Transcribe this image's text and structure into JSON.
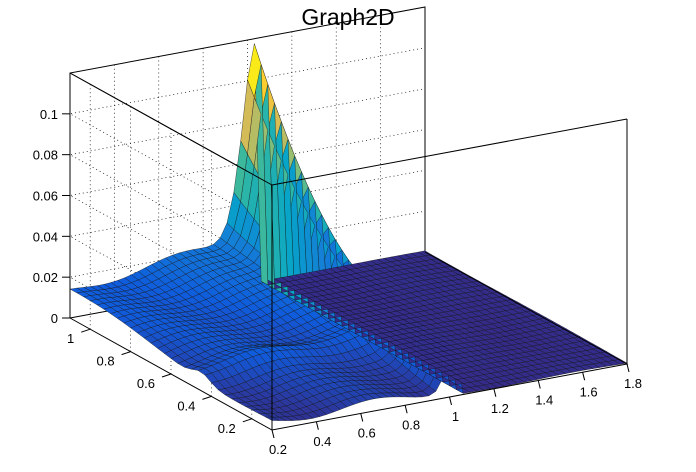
{
  "chart_data": {
    "type": "surface",
    "title": "Graph2D",
    "xlabel": "",
    "ylabel": "",
    "zlabel": "",
    "x_ticks": [
      "0.2",
      "0.4",
      "0.6",
      "0.8",
      "1",
      "1.2",
      "1.4",
      "1.6",
      "1.8"
    ],
    "y_ticks": [
      "0.2",
      "0.4",
      "0.6",
      "0.8",
      "1"
    ],
    "z_ticks": [
      "0",
      "0.02",
      "0.04",
      "0.06",
      "0.08",
      "0.1"
    ],
    "xlim": [
      0.2,
      1.8
    ],
    "ylim": [
      0.1,
      1.1
    ],
    "zlim": [
      0,
      0.12
    ],
    "grid": true,
    "colormap": [
      "#352a87",
      "#0f5cdd",
      "#1481d6",
      "#06a4ca",
      "#2eb7a4",
      "#87bf77",
      "#d1bb59",
      "#fec832",
      "#f9fb0e"
    ],
    "surface_features": {
      "peak_z": 0.11,
      "peak_xy": [
        1.05,
        1.1
      ],
      "ridge_x": 1.02,
      "floor_z_beyond_x": 1.05,
      "corner_z_at_x_0_2_y_1": 0.013
    }
  }
}
